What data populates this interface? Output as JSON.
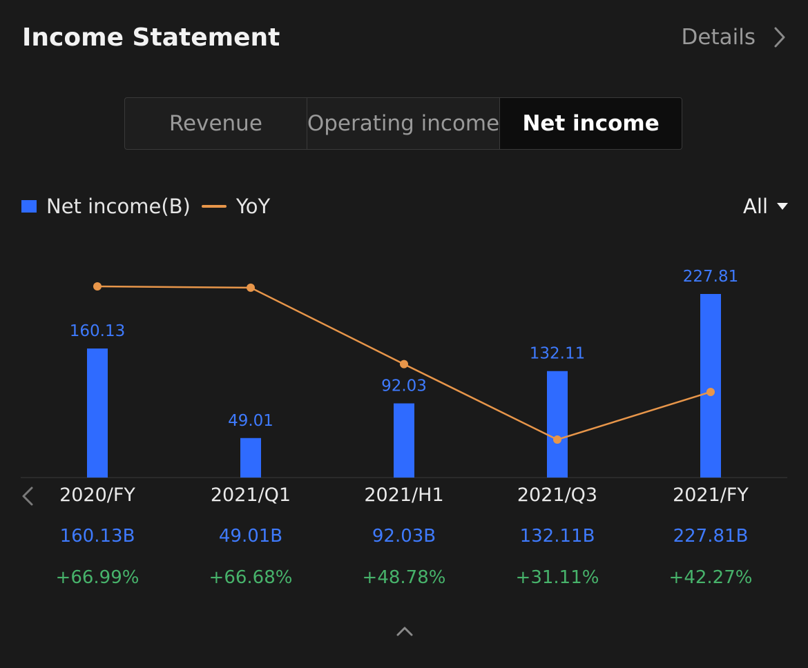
{
  "header": {
    "title": "Income Statement",
    "details_label": "Details"
  },
  "tabs": [
    {
      "label": "Revenue",
      "active": false
    },
    {
      "label": "Operating income",
      "active": false
    },
    {
      "label": "Net income",
      "active": true
    }
  ],
  "legend": {
    "bar_label": "Net income(B)",
    "line_label": "YoY"
  },
  "range_selector": {
    "label": "All"
  },
  "colors": {
    "bar": "#2f6bff",
    "line": "#e8964a",
    "value_text": "#3f7bff",
    "positive": "#47b36b"
  },
  "icons": {
    "details": "chevron-right-icon",
    "range": "caret-down-icon",
    "prev": "chevron-left-icon",
    "collapse": "chevron-up-icon"
  },
  "chart_data": {
    "type": "bar",
    "categories": [
      "2020/FY",
      "2021/Q1",
      "2021/H1",
      "2021/Q3",
      "2021/FY"
    ],
    "series": [
      {
        "name": "Net income(B)",
        "type": "bar",
        "values": [
          160.13,
          49.01,
          92.03,
          132.11,
          227.81
        ]
      },
      {
        "name": "YoY",
        "type": "line",
        "values": [
          66.99,
          66.68,
          48.78,
          31.11,
          42.27
        ]
      }
    ],
    "bar_labels": [
      "160.13",
      "49.01",
      "92.03",
      "132.11",
      "227.81"
    ]
  },
  "table": {
    "values": [
      "160.13B",
      "49.01B",
      "92.03B",
      "132.11B",
      "227.81B"
    ],
    "yoy": [
      "+66.99%",
      "+66.68%",
      "+48.78%",
      "+31.11%",
      "+42.27%"
    ]
  }
}
